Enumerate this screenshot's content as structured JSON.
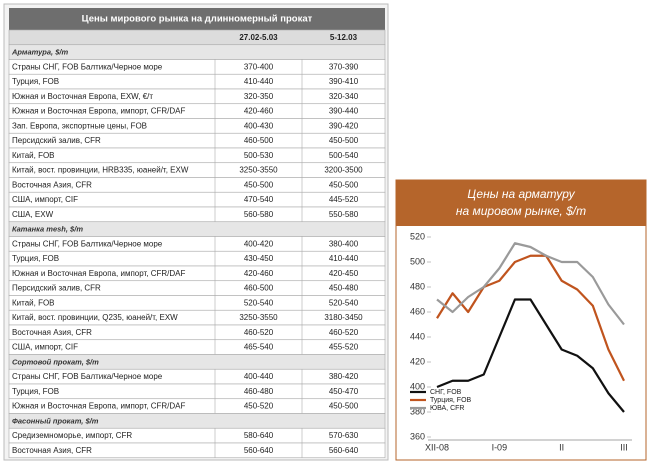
{
  "table": {
    "title": "Цены мирового рынка на длинномерный прокат",
    "columns": [
      "27.02-5.03",
      "5-12.03"
    ],
    "sections": [
      {
        "title": "Арматура, $/т",
        "rows": [
          [
            "Страны СНГ, FOB Балтика/Черное море",
            "370-400",
            "370-390"
          ],
          [
            "Турция, FOB",
            "410-440",
            "390-410"
          ],
          [
            "Южная и Восточная Европа, EXW, €/т",
            "320-350",
            "320-340"
          ],
          [
            "Южная и Восточная Европа, импорт, CFR/DAF",
            "420-460",
            "390-440"
          ],
          [
            "Зап. Европа, экспортные цены, FOB",
            "400-430",
            "390-420"
          ],
          [
            "Персидский залив, CFR",
            "460-500",
            "450-500"
          ],
          [
            "Китай, FOB",
            "500-530",
            "500-540"
          ],
          [
            "Китай, вост. провинции, HRB335, юаней/т, EXW",
            "3250-3550",
            "3200-3500"
          ],
          [
            "Восточная Азия, CFR",
            "450-500",
            "450-500"
          ],
          [
            "США, импорт, CIF",
            "470-540",
            "445-520"
          ],
          [
            "США, EXW",
            "560-580",
            "550-580"
          ]
        ]
      },
      {
        "title": "Катанка mesh, $/т",
        "rows": [
          [
            "Страны СНГ, FOB Балтика/Черное море",
            "400-420",
            "380-400"
          ],
          [
            "Турция, FOB",
            "430-450",
            "410-440"
          ],
          [
            "Южная и Восточная Европа, импорт, CFR/DAF",
            "420-460",
            "420-450"
          ],
          [
            "Персидский залив, CFR",
            "460-500",
            "450-480"
          ],
          [
            "Китай, FOB",
            "520-540",
            "520-540"
          ],
          [
            "Китай, вост. провинции, Q235, юаней/т, EXW",
            "3250-3550",
            "3180-3450"
          ],
          [
            "Восточная Азия, CFR",
            "460-520",
            "460-520"
          ],
          [
            "США, импорт, CIF",
            "465-540",
            "455-520"
          ]
        ]
      },
      {
        "title": "Сортовой прокат, $/т",
        "rows": [
          [
            "Страны СНГ, FOB Балтика/Черное море",
            "400-440",
            "380-420"
          ],
          [
            "Турция, FOB",
            "460-480",
            "450-470"
          ],
          [
            "Южная и Восточная Европа, импорт, CFR/DAF",
            "450-520",
            "450-500"
          ]
        ]
      },
      {
        "title": "Фасонный прокат, $/т",
        "rows": [
          [
            "Средиземноморье, импорт, CFR",
            "580-640",
            "570-630"
          ],
          [
            "Восточная Азия, CFR",
            "560-640",
            "560-640"
          ]
        ]
      }
    ]
  },
  "chart_data": {
    "type": "line",
    "title": [
      "Цены на арматуру",
      "на мировом рынке, $/т"
    ],
    "categories": [
      "XII-08",
      null,
      null,
      null,
      "I-09",
      null,
      null,
      null,
      "II",
      null,
      null,
      null,
      "III"
    ],
    "series": [
      {
        "name": "СНГ, FOB",
        "color": "#111111",
        "values": [
          400,
          405,
          405,
          410,
          440,
          470,
          470,
          450,
          430,
          425,
          415,
          395,
          380
        ]
      },
      {
        "name": "Турция, FOB",
        "color": "#c0541e",
        "values": [
          455,
          475,
          460,
          480,
          485,
          500,
          505,
          505,
          485,
          478,
          465,
          430,
          405
        ]
      },
      {
        "name": "ЮВА, CFR",
        "color": "#9a9a9a",
        "values": [
          470,
          460,
          472,
          480,
          495,
          515,
          512,
          505,
          500,
          500,
          488,
          466,
          450
        ]
      }
    ],
    "ylim": [
      360,
      520
    ],
    "yticks": [
      360,
      380,
      400,
      420,
      440,
      460,
      480,
      500,
      520
    ]
  }
}
